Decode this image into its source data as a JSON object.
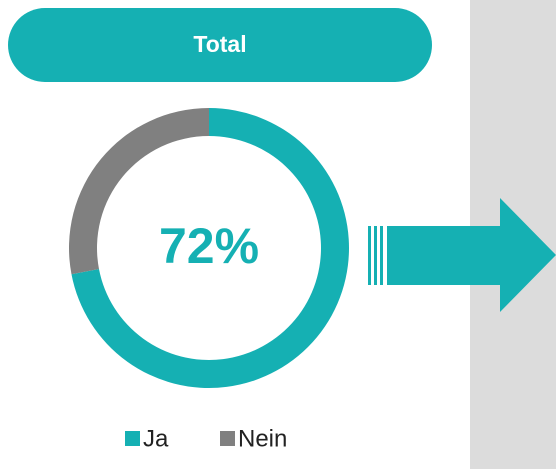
{
  "chart_data": {
    "type": "donut",
    "title": "Total",
    "categories": [
      "Ja",
      "Nein"
    ],
    "series": [
      {
        "name": "Total",
        "values": [
          72,
          28
        ],
        "value_labels": [
          "72%",
          null
        ]
      }
    ],
    "colors": [
      "#15b0b3",
      "#808080"
    ],
    "legend": "bottom"
  }
}
